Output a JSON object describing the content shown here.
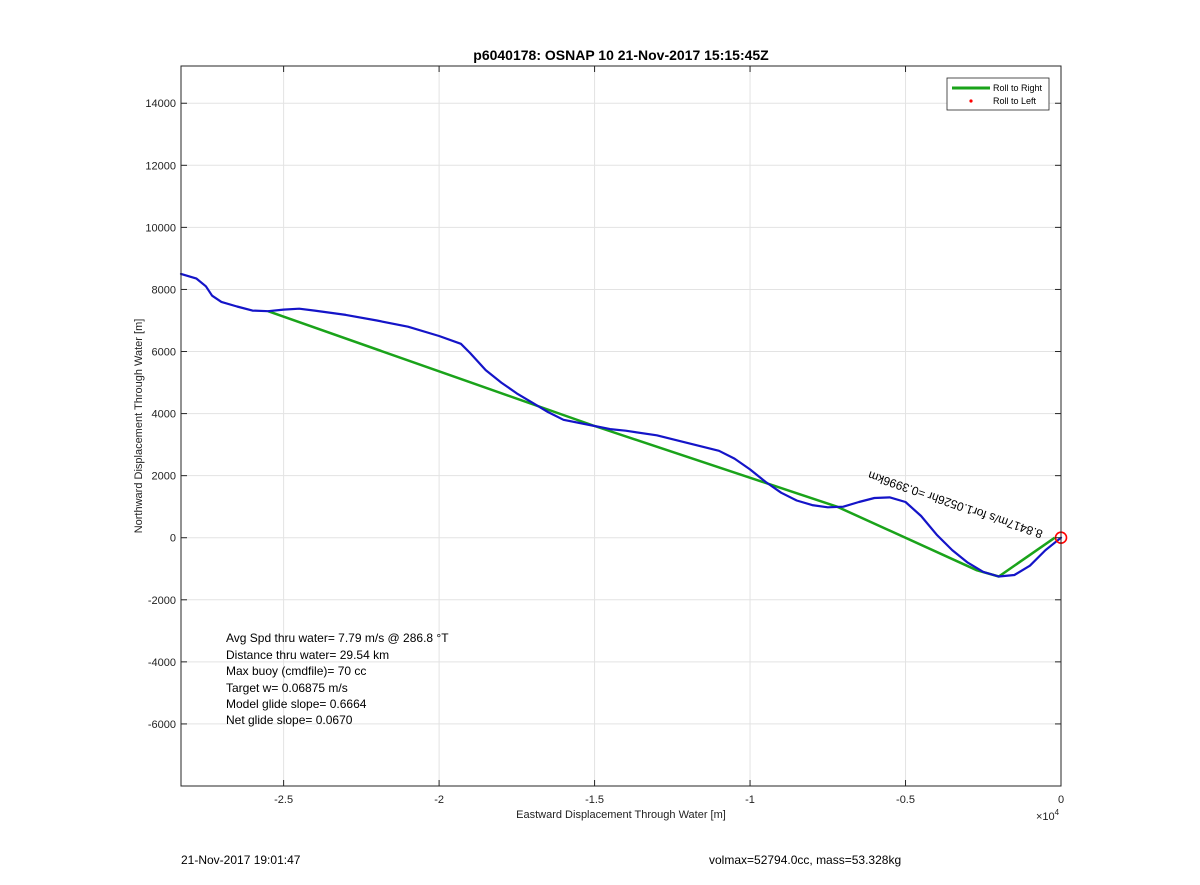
{
  "chart_data": {
    "type": "line",
    "title": "p6040178: OSNAP 10 21-Nov-2017 15:15:45Z",
    "xlabel": "Eastward Displacement Through Water [m]",
    "ylabel": "Northward Displacement Through Water [m]",
    "x_exponent_label": "×10",
    "x_exponent_power": "4",
    "xlim": [
      -28300,
      0
    ],
    "ylim": [
      -8000,
      15200
    ],
    "x_ticks": [
      -25000,
      -20000,
      -15000,
      -10000,
      -5000,
      0
    ],
    "x_tick_labels": [
      "-2.5",
      "-2",
      "-1.5",
      "-1",
      "-0.5",
      "0"
    ],
    "y_ticks": [
      -6000,
      -4000,
      -2000,
      0,
      2000,
      4000,
      6000,
      8000,
      10000,
      12000,
      14000
    ],
    "y_tick_labels": [
      "-6000",
      "-4000",
      "-2000",
      "0",
      "2000",
      "4000",
      "6000",
      "8000",
      "10000",
      "12000",
      "14000"
    ],
    "grid": true,
    "legend": {
      "placement": "top-right",
      "entries": [
        {
          "label": "Roll to Right",
          "color": "#1aa31a",
          "style": "line"
        },
        {
          "label": "Roll to Left",
          "color": "#ff0000",
          "style": "dot"
        }
      ]
    },
    "series": [
      {
        "color": "#1aa31a",
        "points": [
          [
            -25500,
            7300
          ],
          [
            -15000,
            3600
          ],
          [
            -7200,
            1000
          ],
          [
            -2700,
            -1050
          ],
          [
            -2000,
            -1250
          ],
          [
            -200,
            0
          ]
        ]
      },
      {
        "color": "#1414c8",
        "points": [
          [
            -28300,
            8500
          ],
          [
            -27800,
            8350
          ],
          [
            -27500,
            8100
          ],
          [
            -27300,
            7800
          ],
          [
            -27000,
            7600
          ],
          [
            -26500,
            7450
          ],
          [
            -26000,
            7320
          ],
          [
            -25500,
            7300
          ],
          [
            -25000,
            7350
          ],
          [
            -24500,
            7380
          ],
          [
            -24000,
            7320
          ],
          [
            -23000,
            7180
          ],
          [
            -22000,
            7000
          ],
          [
            -21000,
            6800
          ],
          [
            -20000,
            6500
          ],
          [
            -19300,
            6250
          ],
          [
            -19000,
            5950
          ],
          [
            -18500,
            5400
          ],
          [
            -18000,
            5000
          ],
          [
            -17500,
            4650
          ],
          [
            -17000,
            4350
          ],
          [
            -16500,
            4050
          ],
          [
            -16000,
            3800
          ],
          [
            -15000,
            3600
          ],
          [
            -14500,
            3500
          ],
          [
            -14000,
            3450
          ],
          [
            -13000,
            3300
          ],
          [
            -12000,
            3050
          ],
          [
            -11000,
            2800
          ],
          [
            -10500,
            2550
          ],
          [
            -10000,
            2200
          ],
          [
            -9500,
            1800
          ],
          [
            -9000,
            1450
          ],
          [
            -8500,
            1200
          ],
          [
            -8000,
            1050
          ],
          [
            -7500,
            980
          ],
          [
            -7000,
            1000
          ],
          [
            -6500,
            1150
          ],
          [
            -6000,
            1280
          ],
          [
            -5500,
            1300
          ],
          [
            -5000,
            1150
          ],
          [
            -4500,
            700
          ],
          [
            -4000,
            100
          ],
          [
            -3500,
            -400
          ],
          [
            -3000,
            -800
          ],
          [
            -2500,
            -1100
          ],
          [
            -2000,
            -1250
          ],
          [
            -1500,
            -1200
          ],
          [
            -1000,
            -900
          ],
          [
            -500,
            -400
          ],
          [
            0,
            0
          ]
        ]
      }
    ],
    "end_marker": {
      "x": 0,
      "y": 0,
      "color": "#ff0000"
    },
    "rotated_annotation": {
      "text": "8.8417m/s for1.0526hr =0.3996km",
      "x": -6150,
      "y": 2150,
      "angle_deg": 19
    },
    "stats": [
      "Avg Spd thru water=  7.79 m/s @ 286.8 °T",
      "Distance thru water= 29.54 km",
      "Max buoy (cmdfile)= 70 cc",
      "Target w= 0.06875 m/s",
      "Model glide slope= 0.6664",
      "Net glide slope= 0.0670"
    ]
  },
  "footer": {
    "left": "21-Nov-2017 19:01:47",
    "right": "volmax=52794.0cc, mass=53.328kg"
  }
}
